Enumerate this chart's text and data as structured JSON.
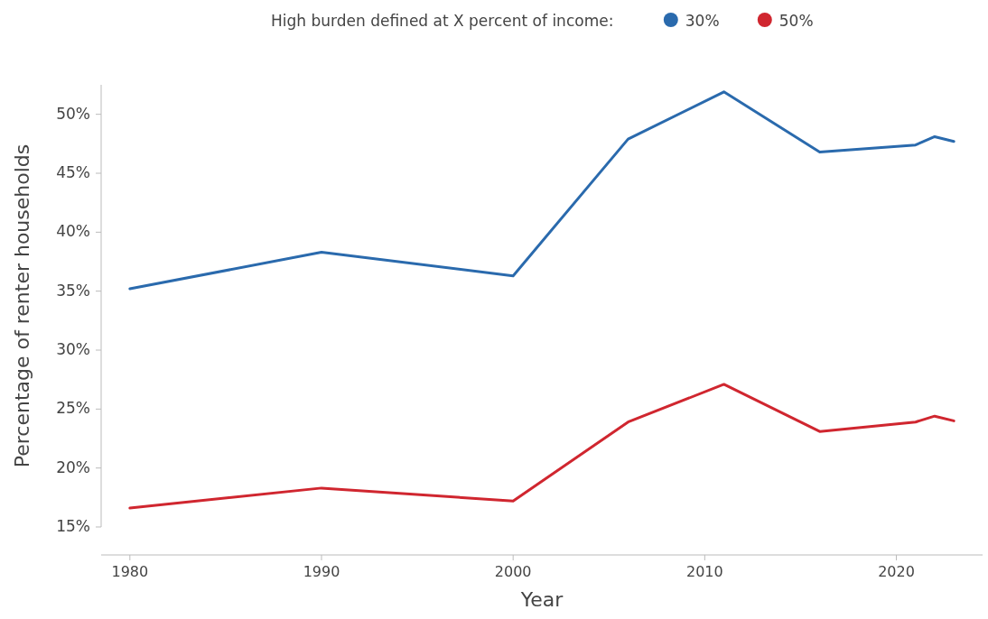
{
  "chart_data": {
    "type": "line",
    "xlabel": "Year",
    "ylabel": "Percentage of renter households",
    "legend_title": "High burden defined at X percent of income:",
    "x": [
      1980,
      1990,
      2000,
      2006,
      2011,
      2016,
      2021,
      2022,
      2023
    ],
    "series": [
      {
        "name": "30%",
        "color": "#2a6aad",
        "values": [
          35.2,
          38.3,
          36.3,
          47.9,
          51.9,
          46.8,
          47.4,
          48.1,
          47.7
        ]
      },
      {
        "name": "50%",
        "color": "#d0262f",
        "values": [
          16.6,
          18.3,
          17.2,
          23.9,
          27.1,
          23.1,
          23.9,
          24.4,
          24.0
        ]
      }
    ],
    "xlim": [
      1978.5,
      2024.5
    ],
    "xticks": [
      1980,
      1990,
      2000,
      2010,
      2020
    ],
    "ylim": [
      15,
      52.5
    ],
    "yticks": [
      {
        "value": 15,
        "label": "15%"
      },
      {
        "value": 20,
        "label": "20%"
      },
      {
        "value": 25,
        "label": "25%"
      },
      {
        "value": 30,
        "label": "30%"
      },
      {
        "value": 35,
        "label": "35%"
      },
      {
        "value": 40,
        "label": "40%"
      },
      {
        "value": 45,
        "label": "45%"
      },
      {
        "value": 50,
        "label": "50%"
      }
    ],
    "legend": "top",
    "grid": false,
    "marker": "none",
    "line_style": "solid"
  }
}
